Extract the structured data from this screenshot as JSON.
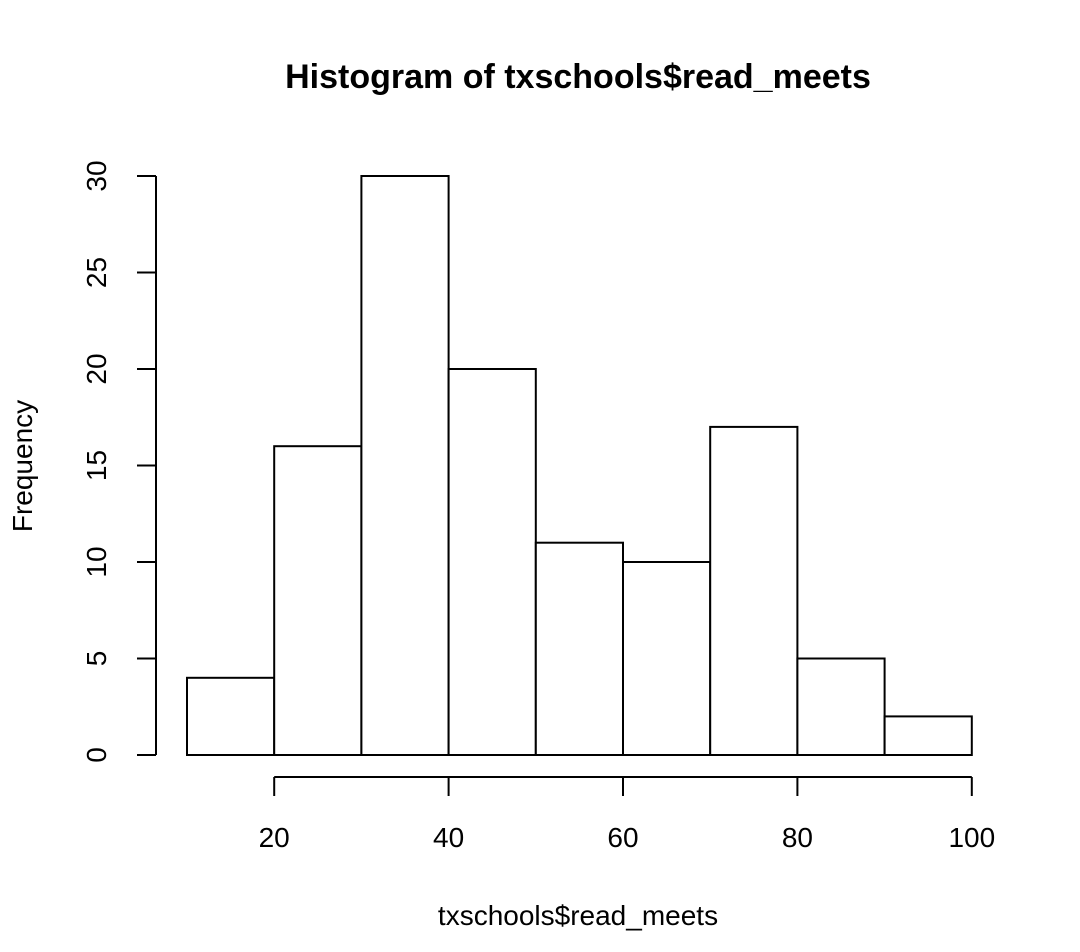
{
  "chart_data": {
    "type": "bar",
    "title": "Histogram of txschools$read_meets",
    "xlabel": "txschools$read_meets",
    "ylabel": "Frequency",
    "bins": [
      {
        "start": 10,
        "end": 20,
        "count": 4
      },
      {
        "start": 20,
        "end": 30,
        "count": 16
      },
      {
        "start": 30,
        "end": 40,
        "count": 30
      },
      {
        "start": 40,
        "end": 50,
        "count": 20
      },
      {
        "start": 50,
        "end": 60,
        "count": 11
      },
      {
        "start": 60,
        "end": 70,
        "count": 10
      },
      {
        "start": 70,
        "end": 80,
        "count": 17
      },
      {
        "start": 80,
        "end": 90,
        "count": 5
      },
      {
        "start": 90,
        "end": 100,
        "count": 2
      }
    ],
    "x_ticks": [
      "20",
      "40",
      "60",
      "80",
      "100"
    ],
    "y_ticks": [
      "0",
      "5",
      "10",
      "15",
      "20",
      "25",
      "30"
    ],
    "xlim": [
      10,
      100
    ],
    "ylim": [
      0,
      30
    ],
    "grid": false
  }
}
